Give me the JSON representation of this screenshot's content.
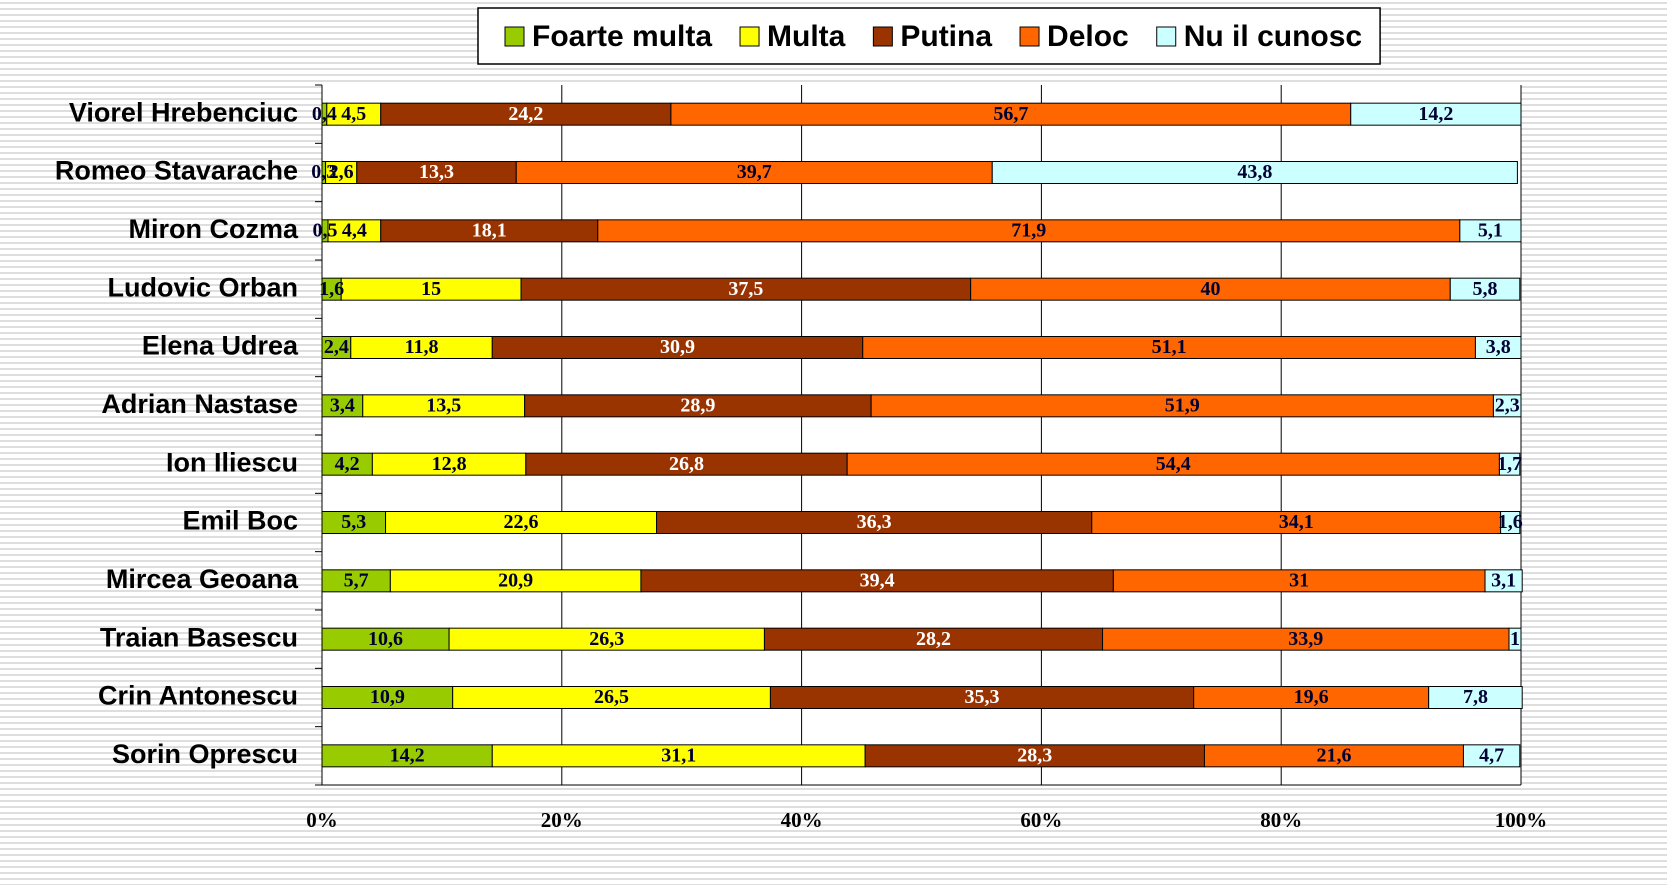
{
  "chart_data": {
    "type": "stacked_barh",
    "categories": [
      "Viorel Hrebenciuc",
      "Romeo Stavarache",
      "Miron Cozma",
      "Ludovic Orban",
      "Elena Udrea",
      "Adrian Nastase",
      "Ion Iliescu",
      "Emil Boc",
      "Mircea Geoana",
      "Traian Basescu",
      "Crin Antonescu",
      "Sorin Oprescu"
    ],
    "series": [
      {
        "name": "Foarte multa",
        "color": "#99cc00",
        "values": [
          0.4,
          0.3,
          0.5,
          1.6,
          2.4,
          3.4,
          4.2,
          5.3,
          5.7,
          10.6,
          10.9,
          14.2
        ],
        "value_labels": [
          "0,4",
          "0,3",
          "0,5",
          "1,6",
          "2,4",
          "3,4",
          "4,2",
          "5,3",
          "5,7",
          "10,6",
          "10,9",
          "14,2"
        ]
      },
      {
        "name": "Multa",
        "color": "#ffff00",
        "values": [
          4.5,
          2.6,
          4.4,
          15,
          11.8,
          13.5,
          12.8,
          22.6,
          20.9,
          26.3,
          26.5,
          31.1
        ],
        "value_labels": [
          "4,5",
          "2,6",
          "4,4",
          "15",
          "11,8",
          "13,5",
          "12,8",
          "22,6",
          "20,9",
          "26,3",
          "26,5",
          "31,1"
        ]
      },
      {
        "name": "Putina",
        "color": "#993300",
        "values": [
          24.2,
          13.3,
          18.1,
          37.5,
          30.9,
          28.9,
          26.8,
          36.3,
          39.4,
          28.2,
          35.3,
          28.3
        ],
        "value_labels": [
          "24,2",
          "13,3",
          "18,1",
          "37,5",
          "30,9",
          "28,9",
          "26,8",
          "36,3",
          "39,4",
          "28,2",
          "35,3",
          "28,3"
        ]
      },
      {
        "name": "Deloc",
        "color": "#ff6600",
        "values": [
          56.7,
          39.7,
          71.9,
          40,
          51.1,
          51.9,
          54.4,
          34.1,
          31,
          33.9,
          19.6,
          21.6
        ],
        "value_labels": [
          "56,7",
          "39,7",
          "71,9",
          "40",
          "51,1",
          "51,9",
          "54,4",
          "34,1",
          "31",
          "33,9",
          "19,6",
          "21,6"
        ]
      },
      {
        "name": "Nu il cunosc",
        "color": "#ccffff",
        "values": [
          14.2,
          43.8,
          5.1,
          5.8,
          3.8,
          2.3,
          1.7,
          1.6,
          3.1,
          1,
          7.8,
          4.7
        ],
        "value_labels": [
          "14,2",
          "43,8",
          "5,1",
          "5,8",
          "3,8",
          "2,3",
          "1,7",
          "1,6",
          "3,1",
          "1",
          "7,8",
          "4,7"
        ]
      }
    ],
    "xlim": [
      0,
      100
    ],
    "xticks": [
      {
        "value": 0,
        "label": "0%"
      },
      {
        "value": 20,
        "label": "20%"
      },
      {
        "value": 40,
        "label": "40%"
      },
      {
        "value": 60,
        "label": "60%"
      },
      {
        "value": 80,
        "label": "80%"
      },
      {
        "value": 100,
        "label": "100%"
      }
    ],
    "grid": true,
    "legend": "top"
  }
}
